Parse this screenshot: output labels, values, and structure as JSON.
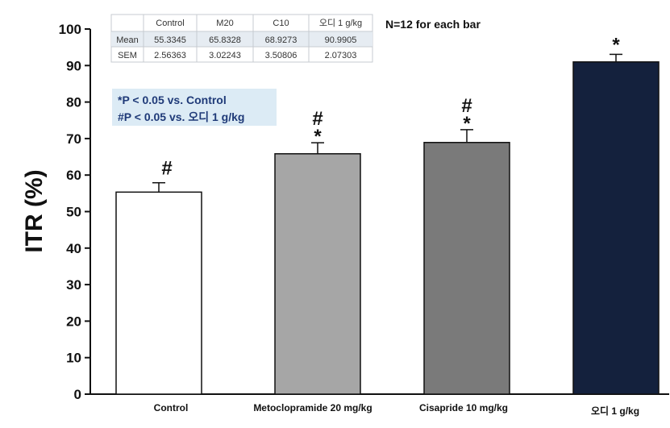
{
  "chart_data": {
    "type": "bar",
    "ylabel": "ITR (%)",
    "ylim": [
      0,
      100
    ],
    "yticks": [
      0,
      10,
      20,
      30,
      40,
      50,
      60,
      70,
      80,
      90,
      100
    ],
    "categories": [
      "Control",
      "Metoclopramide 20 mg/kg",
      "Cisapride 10 mg/kg",
      "오디 1 g/kg"
    ],
    "values": [
      55.3345,
      65.8328,
      68.9273,
      90.9905
    ],
    "errors": [
      2.56363,
      3.02243,
      3.50806,
      2.07303
    ],
    "bar_colors": [
      "#ffffff",
      "#a6a6a6",
      "#7a7a7a",
      "#14213d"
    ],
    "significance": [
      "#",
      "*#",
      "*#",
      "*"
    ],
    "note": "N=12 for each bar",
    "legend_lines": [
      "*P < 0.05 vs. Control",
      "#P < 0.05 vs. 오디 1 g/kg"
    ],
    "table": {
      "header": [
        "",
        "Control",
        "M20",
        "C10",
        "오디 1 g/kg"
      ],
      "rows": [
        [
          "Mean",
          "55.3345",
          "65.8328",
          "68.9273",
          "90.9905"
        ],
        [
          "SEM",
          "2.56363",
          "3.02243",
          "3.50806",
          "2.07303"
        ]
      ]
    }
  }
}
